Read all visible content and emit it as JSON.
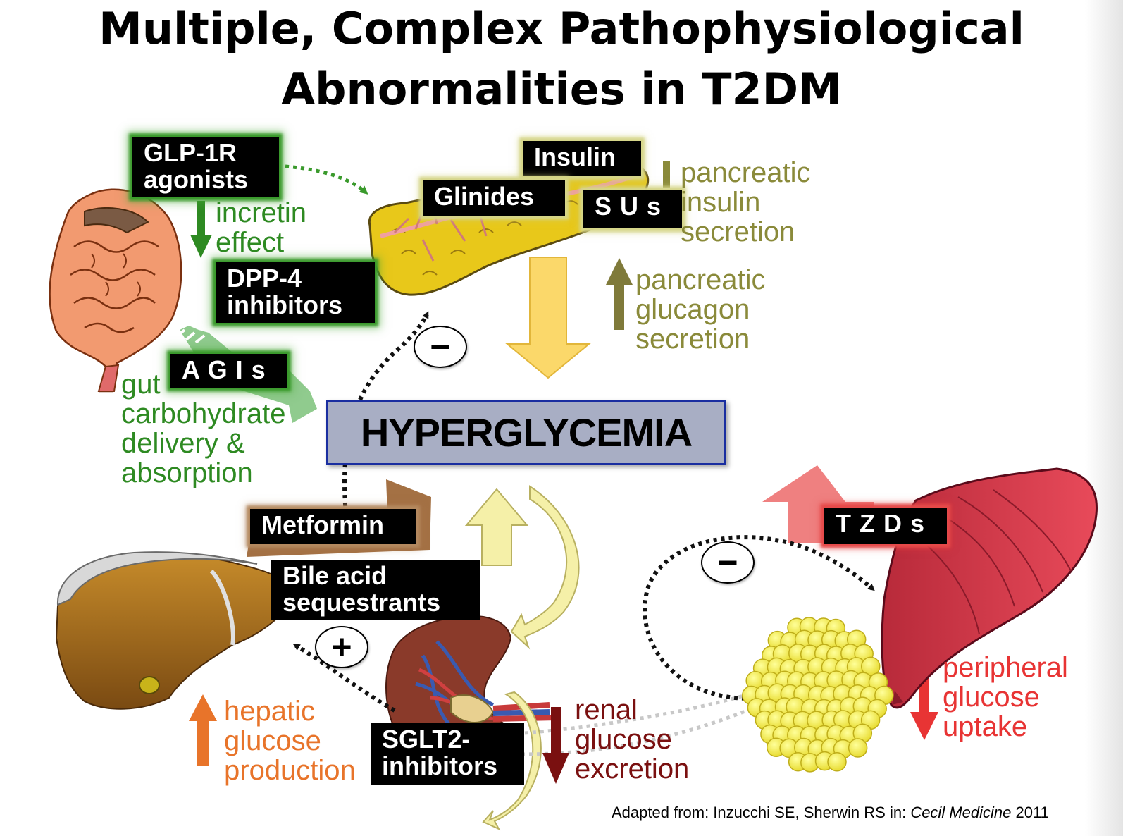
{
  "title": {
    "line1": "Multiple, Complex Pathophysiological",
    "line2": "Abnormalities in T2DM"
  },
  "center": {
    "label": "HYPERGLYCEMIA"
  },
  "drugs": {
    "glp1": {
      "line1": "GLP-1R",
      "line2": "agonists"
    },
    "dpp4": {
      "line1": "DPP-4",
      "line2": "inhibitors"
    },
    "agis": "A G I s",
    "insulin": "Insulin",
    "glinides": "Glinides",
    "sus": "S U s",
    "metformin": "Metformin",
    "bile": {
      "line1": "Bile acid",
      "line2": "sequestrants"
    },
    "tzds": "T Z D s",
    "sglt2": {
      "line1": "SGLT2-",
      "line2": "inhibitors"
    }
  },
  "labels": {
    "incretin": {
      "line1": "incretin",
      "line2": "effect"
    },
    "gut": {
      "line1": "gut",
      "line2": "carbohydrate",
      "line3": "delivery &",
      "line4": "absorption"
    },
    "insulin_secretion": {
      "line1": "pancreatic",
      "line2": "insulin",
      "line3": "secretion"
    },
    "glucagon_secretion": {
      "line1": "pancreatic",
      "line2": "glucagon",
      "line3": "secretion"
    },
    "hepatic": {
      "line1": "hepatic",
      "line2": "glucose",
      "line3": "production"
    },
    "renal": {
      "line1": "renal",
      "line2": "glucose",
      "line3": "excretion"
    },
    "peripheral": {
      "line1": "peripheral",
      "line2": "glucose",
      "line3": "uptake"
    }
  },
  "signs": {
    "pancreas": "−",
    "muscle": "−",
    "liver": "+"
  },
  "source": {
    "prefix": "Adapted from: Inzucchi SE, Sherwin RS in: ",
    "book": "Cecil Medicine",
    "year": " 2011"
  },
  "colors": {
    "green": "#2e8a22",
    "olive": "#8a8a3a",
    "orange": "#e8742a",
    "dark_red": "#7a1010",
    "red": "#e83434",
    "hyperglycemia_fill": "#a8aec4",
    "hyperglycemia_border": "#1a2ea0"
  },
  "icons": [
    "intestine-icon",
    "pancreas-icon",
    "liver-icon",
    "kidney-icon",
    "muscle-icon",
    "fat-cells-icon"
  ]
}
